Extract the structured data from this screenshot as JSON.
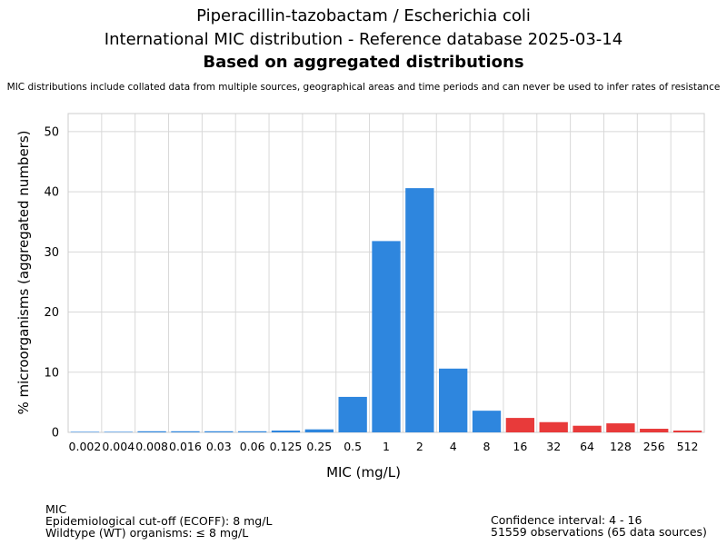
{
  "header": {
    "title_line1": "Piperacillin-tazobactam / Escherichia coli",
    "title_line2": "International MIC distribution - Reference database 2025-03-14",
    "title_line3": "Based on aggregated distributions",
    "disclaimer": "MIC distributions include collated data from multiple sources, geographical areas and time periods and can never be used to infer rates of resistance"
  },
  "footer": {
    "left_line1": "MIC",
    "left_line2": "Epidemiological cut-off (ECOFF): 8 mg/L",
    "left_line3": "Wildtype (WT) organisms: ≤ 8 mg/L",
    "right_line1": "Confidence interval: 4 - 16",
    "right_line2": "51559 observations (65 data sources)"
  },
  "colors": {
    "wildtype": "#2e86de",
    "non_wildtype": "#e83a3a",
    "grid": "#d8d8d8",
    "frame": "#cccccc"
  },
  "chart_data": {
    "type": "bar",
    "xlabel": "MIC (mg/L)",
    "ylabel": "% microorganisms (aggregated numbers)",
    "ylim": [
      0,
      53
    ],
    "yticks": [
      0,
      10,
      20,
      30,
      40,
      50
    ],
    "grid": true,
    "categories": [
      "0.002",
      "0.004",
      "0.008",
      "0.016",
      "0.03",
      "0.06",
      "0.125",
      "0.25",
      "0.5",
      "1",
      "2",
      "4",
      "8",
      "16",
      "32",
      "64",
      "128",
      "256",
      "512"
    ],
    "values": [
      0,
      0,
      0.1,
      0.1,
      0.1,
      0.15,
      0.3,
      0.5,
      5.9,
      31.8,
      40.6,
      10.6,
      3.6,
      2.4,
      1.7,
      1.1,
      1.5,
      0.6,
      0.3
    ],
    "wildtype_max_index": 12
  }
}
